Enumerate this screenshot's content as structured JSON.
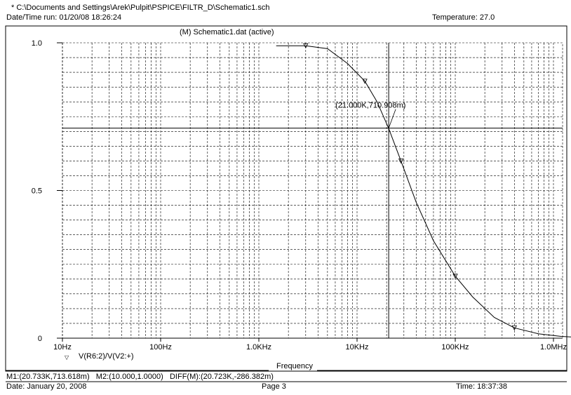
{
  "header": {
    "file_path": "* C:\\Documents and Settings\\Arek\\Pulpit\\PSPICE\\FILTR_D\\Schematic1.sch",
    "datetime_run": "Date/Time run: 01/20/08 18:26:24",
    "temperature": "Temperature: 27.0"
  },
  "plot": {
    "section_title": "(M) Schematic1.dat (active)",
    "cursor_annotation": "(21.000K,710.908m)"
  },
  "footer": {
    "measurements": "M1:(20.733K,713.618m)   M2:(10.000,1.0000)   DIFF(M):(20.723K,-286.382m)",
    "date": "Date: January 20, 2008",
    "page": "Page 3",
    "time": "Time: 18:37:38"
  },
  "chart_data": {
    "type": "line",
    "title": "(M) Schematic1.dat (active)",
    "xlabel": "Frequency",
    "ylabel": "",
    "x_scale": "log",
    "xlim": [
      10,
      3000000
    ],
    "ylim": [
      0,
      1.0
    ],
    "x_ticks": [
      10,
      100,
      1000,
      10000,
      100000,
      1000000
    ],
    "x_tick_labels": [
      "10Hz",
      "100Hz",
      "1.0KHz",
      "10KHz",
      "100KHz",
      "1.0MHz"
    ],
    "y_ticks": [
      0,
      0.5,
      1.0
    ],
    "y_tick_labels": [
      "0",
      "0.5",
      "1.0"
    ],
    "grid": true,
    "legend_position": "bottom-left",
    "series": [
      {
        "name": "V(R6:2)/V(V2:+)",
        "marker": "triangle-down",
        "color": "#000000",
        "x": [
          1500,
          3000,
          5000,
          8000,
          12000,
          16000,
          21000,
          28000,
          40000,
          60000,
          100000,
          150000,
          250000,
          400000,
          700000,
          1200000,
          2000000,
          3000000
        ],
        "y": [
          0.99,
          0.99,
          0.98,
          0.93,
          0.87,
          0.8,
          0.71,
          0.6,
          0.46,
          0.33,
          0.21,
          0.14,
          0.07,
          0.035,
          0.015,
          0.006,
          0.002,
          0.001
        ]
      }
    ],
    "cursor": {
      "x": 21000,
      "y": 0.711,
      "label": "(21.000K,710.908m)"
    }
  }
}
